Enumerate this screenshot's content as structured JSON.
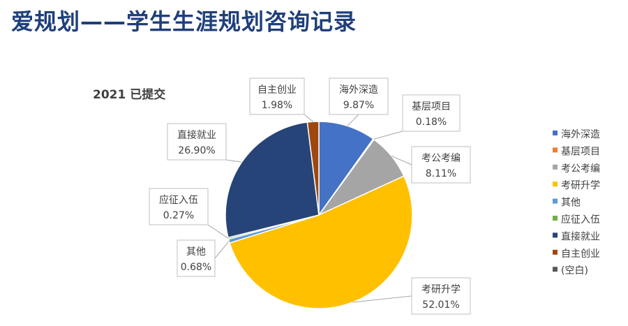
{
  "page": {
    "title": "爱规划——学生生涯规划咨询记录"
  },
  "chart_data": {
    "type": "pie",
    "title": "2021 已提交",
    "legend_position": "right",
    "categories": [
      "海外深造",
      "基层项目",
      "考公考编",
      "考研升学",
      "其他",
      "应征入伍",
      "直接就业",
      "自主创业",
      "(空白)"
    ],
    "values": [
      9.87,
      0.18,
      8.11,
      52.01,
      0.68,
      0.27,
      26.9,
      1.98,
      0
    ],
    "value_labels": [
      "9.87%",
      "0.18%",
      "8.11%",
      "52.01%",
      "0.68%",
      "0.27%",
      "26.90%",
      "1.98%",
      ""
    ],
    "colors": [
      "#4472c4",
      "#ed7d31",
      "#a5a5a5",
      "#ffc000",
      "#5b9bd5",
      "#70ad47",
      "#264478",
      "#9e480e",
      "#595959"
    ]
  }
}
